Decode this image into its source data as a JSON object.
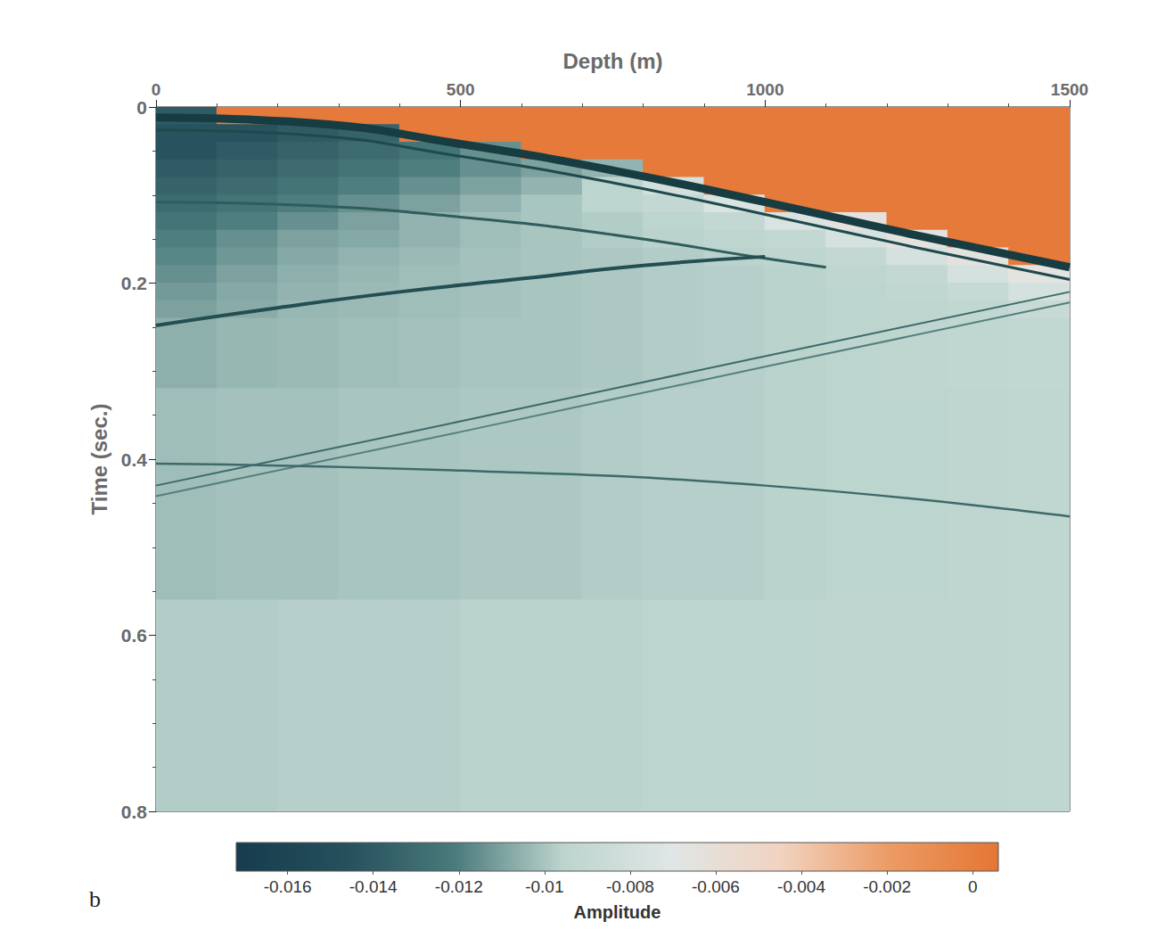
{
  "chart_data": {
    "type": "heatmap",
    "x_label": "Depth (m)",
    "y_label": "Time (sec.)",
    "panel_label": "b",
    "xlim": [
      0,
      1500
    ],
    "xticks": [
      0,
      500,
      1000,
      1500
    ],
    "ylim": [
      0,
      0.8
    ],
    "yticks": [
      0,
      0.2,
      0.4,
      0.6,
      0.8
    ],
    "x": [
      50,
      150,
      250,
      350,
      450,
      550,
      650,
      750,
      850,
      950,
      1050,
      1150,
      1250,
      1350,
      1450
    ],
    "y": [
      0.01,
      0.03,
      0.05,
      0.07,
      0.09,
      0.11,
      0.13,
      0.15,
      0.17,
      0.19,
      0.21,
      0.23,
      0.25,
      0.27,
      0.29,
      0.31,
      0.33,
      0.35,
      0.37,
      0.39,
      0.41,
      0.43,
      0.45,
      0.47,
      0.49,
      0.51,
      0.53,
      0.55,
      0.57,
      0.59,
      0.61,
      0.63,
      0.65,
      0.67,
      0.69,
      0.71,
      0.73,
      0.75,
      0.77,
      0.79
    ],
    "cells": [
      [
        -0.014,
        0.0003,
        0.0003,
        0.0003,
        0.0003,
        0.0003,
        0.0003,
        0.0003,
        0.0003,
        0.0003,
        0.0003,
        0.0003,
        0.0003,
        0.0003,
        0.0003
      ],
      [
        -0.0145,
        -0.0145,
        -0.014,
        -0.0135,
        0.0003,
        0.0003,
        0.0003,
        0.0003,
        0.0003,
        0.0003,
        0.0003,
        0.0003,
        0.0003,
        0.0003,
        0.0003
      ],
      [
        -0.0145,
        -0.014,
        -0.0135,
        -0.013,
        -0.0125,
        -0.0115,
        0.0003,
        0.0003,
        0.0003,
        0.0003,
        0.0003,
        0.0003,
        0.0003,
        0.0003,
        0.0003
      ],
      [
        -0.014,
        -0.0135,
        -0.013,
        -0.0125,
        -0.012,
        -0.0115,
        -0.011,
        -0.0105,
        0.0003,
        0.0003,
        0.0003,
        0.0003,
        0.0003,
        0.0003,
        0.0003
      ],
      [
        -0.0135,
        -0.013,
        -0.0125,
        -0.012,
        -0.0115,
        -0.011,
        -0.0105,
        -0.0095,
        -0.008,
        0.0003,
        0.0003,
        0.0003,
        0.0003,
        0.0003,
        0.0003
      ],
      [
        -0.013,
        -0.0125,
        -0.012,
        -0.0115,
        -0.011,
        -0.0105,
        -0.01,
        -0.0095,
        -0.009,
        -0.0075,
        0.0003,
        0.0003,
        0.0003,
        0.0003,
        0.0003
      ],
      [
        -0.0125,
        -0.012,
        -0.0115,
        -0.011,
        -0.0105,
        -0.0102,
        -0.01,
        -0.0098,
        -0.0095,
        -0.009,
        -0.0075,
        -0.0065,
        0.0003,
        0.0003,
        0.0003
      ],
      [
        -0.012,
        -0.0115,
        -0.011,
        -0.0108,
        -0.0105,
        -0.0102,
        -0.01,
        -0.0098,
        -0.0096,
        -0.0094,
        -0.009,
        -0.0078,
        -0.0065,
        0.0003,
        0.0003
      ],
      [
        -0.0118,
        -0.0113,
        -0.0108,
        -0.0105,
        -0.0103,
        -0.0101,
        -0.01,
        -0.0099,
        -0.0098,
        -0.0096,
        -0.0094,
        -0.009,
        -0.0078,
        -0.0065,
        0.0003
      ],
      [
        -0.0115,
        -0.011,
        -0.0106,
        -0.0104,
        -0.0102,
        -0.0101,
        -0.01,
        -0.0099,
        -0.0098,
        -0.0097,
        -0.0096,
        -0.0094,
        -0.009,
        -0.0078,
        -0.0066
      ],
      [
        -0.0112,
        -0.0108,
        -0.0105,
        -0.0103,
        -0.0102,
        -0.0101,
        -0.01,
        -0.0099,
        -0.0098,
        -0.0097,
        -0.0096,
        -0.0095,
        -0.0093,
        -0.0088,
        -0.0078
      ],
      [
        -0.011,
        -0.0107,
        -0.0104,
        -0.0103,
        -0.0102,
        -0.0101,
        -0.01,
        -0.0099,
        -0.0098,
        -0.0097,
        -0.0096,
        -0.0095,
        -0.0094,
        -0.0092,
        -0.0087
      ],
      [
        -0.0106,
        -0.0104,
        -0.0103,
        -0.0102,
        -0.0101,
        -0.01,
        -0.01,
        -0.0099,
        -0.0098,
        -0.0097,
        -0.0096,
        -0.0095,
        -0.0094,
        -0.0093,
        -0.0092
      ],
      [
        -0.0106,
        -0.0104,
        -0.0103,
        -0.0102,
        -0.0101,
        -0.01,
        -0.01,
        -0.0099,
        -0.0098,
        -0.0097,
        -0.0096,
        -0.0095,
        -0.0094,
        -0.0093,
        -0.0092
      ],
      [
        -0.0106,
        -0.0104,
        -0.0103,
        -0.0102,
        -0.0101,
        -0.01,
        -0.01,
        -0.0099,
        -0.0098,
        -0.0097,
        -0.0096,
        -0.0095,
        -0.0094,
        -0.0093,
        -0.0092
      ],
      [
        -0.0106,
        -0.0104,
        -0.0103,
        -0.0102,
        -0.0101,
        -0.01,
        -0.01,
        -0.0099,
        -0.0098,
        -0.0097,
        -0.0096,
        -0.0095,
        -0.0094,
        -0.0093,
        -0.0092
      ],
      [
        -0.0102,
        -0.0101,
        -0.0101,
        -0.01,
        -0.01,
        -0.0099,
        -0.0099,
        -0.0098,
        -0.0097,
        -0.0097,
        -0.0096,
        -0.0095,
        -0.0095,
        -0.0094,
        -0.0093
      ],
      [
        -0.0102,
        -0.0101,
        -0.0101,
        -0.01,
        -0.01,
        -0.0099,
        -0.0099,
        -0.0098,
        -0.0097,
        -0.0097,
        -0.0096,
        -0.0095,
        -0.0095,
        -0.0094,
        -0.0093
      ],
      [
        -0.0102,
        -0.0101,
        -0.0101,
        -0.01,
        -0.01,
        -0.0099,
        -0.0099,
        -0.0098,
        -0.0097,
        -0.0097,
        -0.0096,
        -0.0095,
        -0.0095,
        -0.0094,
        -0.0093
      ],
      [
        -0.0102,
        -0.0101,
        -0.0101,
        -0.01,
        -0.01,
        -0.0099,
        -0.0099,
        -0.0098,
        -0.0097,
        -0.0097,
        -0.0096,
        -0.0095,
        -0.0095,
        -0.0094,
        -0.0093
      ],
      [
        -0.0102,
        -0.0101,
        -0.0101,
        -0.01,
        -0.01,
        -0.0099,
        -0.0099,
        -0.0098,
        -0.0097,
        -0.0097,
        -0.0096,
        -0.0095,
        -0.0095,
        -0.0094,
        -0.0093
      ],
      [
        -0.0102,
        -0.0101,
        -0.0101,
        -0.01,
        -0.01,
        -0.0099,
        -0.0099,
        -0.0098,
        -0.0097,
        -0.0097,
        -0.0096,
        -0.0095,
        -0.0095,
        -0.0094,
        -0.0093
      ],
      [
        -0.0102,
        -0.0101,
        -0.0101,
        -0.01,
        -0.01,
        -0.0099,
        -0.0099,
        -0.0098,
        -0.0097,
        -0.0097,
        -0.0096,
        -0.0095,
        -0.0095,
        -0.0094,
        -0.0093
      ],
      [
        -0.0102,
        -0.0101,
        -0.0101,
        -0.01,
        -0.01,
        -0.0099,
        -0.0099,
        -0.0098,
        -0.0097,
        -0.0097,
        -0.0096,
        -0.0095,
        -0.0095,
        -0.0094,
        -0.0093
      ],
      [
        -0.0102,
        -0.0101,
        -0.0101,
        -0.01,
        -0.01,
        -0.0099,
        -0.0099,
        -0.0098,
        -0.0097,
        -0.0097,
        -0.0096,
        -0.0095,
        -0.0095,
        -0.0094,
        -0.0093
      ],
      [
        -0.0102,
        -0.0101,
        -0.0101,
        -0.01,
        -0.01,
        -0.0099,
        -0.0099,
        -0.0098,
        -0.0097,
        -0.0097,
        -0.0096,
        -0.0095,
        -0.0095,
        -0.0094,
        -0.0093
      ],
      [
        -0.0102,
        -0.0101,
        -0.0101,
        -0.01,
        -0.01,
        -0.0099,
        -0.0099,
        -0.0098,
        -0.0097,
        -0.0097,
        -0.0096,
        -0.0095,
        -0.0095,
        -0.0094,
        -0.0093
      ],
      [
        -0.0102,
        -0.0101,
        -0.0101,
        -0.01,
        -0.01,
        -0.0099,
        -0.0099,
        -0.0098,
        -0.0097,
        -0.0097,
        -0.0096,
        -0.0095,
        -0.0095,
        -0.0094,
        -0.0093
      ],
      [
        -0.0098,
        -0.0098,
        -0.0097,
        -0.0097,
        -0.0097,
        -0.0096,
        -0.0096,
        -0.0096,
        -0.0095,
        -0.0095,
        -0.0095,
        -0.0094,
        -0.0094,
        -0.0094,
        -0.0093
      ],
      [
        -0.0098,
        -0.0098,
        -0.0097,
        -0.0097,
        -0.0097,
        -0.0096,
        -0.0096,
        -0.0096,
        -0.0095,
        -0.0095,
        -0.0095,
        -0.0094,
        -0.0094,
        -0.0094,
        -0.0093
      ],
      [
        -0.0098,
        -0.0098,
        -0.0097,
        -0.0097,
        -0.0097,
        -0.0096,
        -0.0096,
        -0.0096,
        -0.0095,
        -0.0095,
        -0.0095,
        -0.0094,
        -0.0094,
        -0.0094,
        -0.0093
      ],
      [
        -0.0098,
        -0.0098,
        -0.0097,
        -0.0097,
        -0.0097,
        -0.0096,
        -0.0096,
        -0.0096,
        -0.0095,
        -0.0095,
        -0.0095,
        -0.0094,
        -0.0094,
        -0.0094,
        -0.0093
      ],
      [
        -0.0098,
        -0.0098,
        -0.0097,
        -0.0097,
        -0.0097,
        -0.0096,
        -0.0096,
        -0.0096,
        -0.0095,
        -0.0095,
        -0.0095,
        -0.0094,
        -0.0094,
        -0.0094,
        -0.0093
      ],
      [
        -0.0098,
        -0.0098,
        -0.0097,
        -0.0097,
        -0.0097,
        -0.0096,
        -0.0096,
        -0.0096,
        -0.0095,
        -0.0095,
        -0.0095,
        -0.0094,
        -0.0094,
        -0.0094,
        -0.0093
      ],
      [
        -0.0098,
        -0.0098,
        -0.0097,
        -0.0097,
        -0.0097,
        -0.0096,
        -0.0096,
        -0.0096,
        -0.0095,
        -0.0095,
        -0.0095,
        -0.0094,
        -0.0094,
        -0.0094,
        -0.0093
      ],
      [
        -0.0098,
        -0.0098,
        -0.0097,
        -0.0097,
        -0.0097,
        -0.0096,
        -0.0096,
        -0.0096,
        -0.0095,
        -0.0095,
        -0.0095,
        -0.0094,
        -0.0094,
        -0.0094,
        -0.0093
      ],
      [
        -0.0098,
        -0.0098,
        -0.0097,
        -0.0097,
        -0.0097,
        -0.0096,
        -0.0096,
        -0.0096,
        -0.0095,
        -0.0095,
        -0.0095,
        -0.0094,
        -0.0094,
        -0.0094,
        -0.0093
      ],
      [
        -0.0098,
        -0.0098,
        -0.0097,
        -0.0097,
        -0.0097,
        -0.0096,
        -0.0096,
        -0.0096,
        -0.0095,
        -0.0095,
        -0.0095,
        -0.0094,
        -0.0094,
        -0.0094,
        -0.0093
      ],
      [
        -0.0098,
        -0.0098,
        -0.0097,
        -0.0097,
        -0.0097,
        -0.0096,
        -0.0096,
        -0.0096,
        -0.0095,
        -0.0095,
        -0.0095,
        -0.0094,
        -0.0094,
        -0.0094,
        -0.0093
      ],
      [
        -0.0098,
        -0.0098,
        -0.0097,
        -0.0097,
        -0.0097,
        -0.0096,
        -0.0096,
        -0.0096,
        -0.0095,
        -0.0095,
        -0.0095,
        -0.0094,
        -0.0094,
        -0.0094,
        -0.0093
      ]
    ],
    "colorbar": {
      "label": "Amplitude",
      "range": [
        -0.0172,
        0.0006
      ],
      "ticks": [
        -0.016,
        -0.014,
        -0.012,
        -0.01,
        -0.008,
        -0.006,
        -0.004,
        -0.002,
        0
      ]
    },
    "series": [
      {
        "type": "line",
        "color": "#173c42",
        "line_style": "solid",
        "x": [
          0,
          250,
          500,
          750,
          1000,
          1250,
          1500
        ],
        "values": [
          0.012,
          0.018,
          0.042,
          0.072,
          0.108,
          0.146,
          0.182
        ]
      },
      {
        "type": "line",
        "color": "#1f4a4c",
        "line_style": "solid",
        "x": [
          0,
          250,
          500,
          750,
          1000,
          1250,
          1500
        ],
        "values": [
          0.026,
          0.032,
          0.056,
          0.086,
          0.122,
          0.16,
          0.196
        ]
      },
      {
        "type": "line",
        "color": "#2f5d5c",
        "line_style": "solid",
        "x": [
          0,
          250,
          500,
          750,
          1000,
          1100
        ],
        "values": [
          0.108,
          0.112,
          0.125,
          0.145,
          0.172,
          0.182
        ]
      },
      {
        "type": "line",
        "color": "#234e52",
        "line_style": "solid",
        "x": [
          0,
          200,
          400,
          600,
          800,
          1000
        ],
        "values": [
          0.248,
          0.228,
          0.21,
          0.195,
          0.18,
          0.17
        ]
      },
      {
        "type": "line",
        "color": "#3d6a69",
        "line_style": "solid",
        "x": [
          0,
          500,
          1000,
          1500
        ],
        "values": [
          0.43,
          0.357,
          0.283,
          0.21
        ]
      },
      {
        "type": "line",
        "color": "#557f7d",
        "line_style": "solid",
        "x": [
          0,
          500,
          1000,
          1500
        ],
        "values": [
          0.442,
          0.369,
          0.295,
          0.222
        ]
      },
      {
        "type": "line",
        "color": "#3d6a69",
        "line_style": "solid",
        "x": [
          0,
          500,
          1000,
          1500
        ],
        "values": [
          0.405,
          0.413,
          0.43,
          0.465
        ]
      }
    ]
  }
}
